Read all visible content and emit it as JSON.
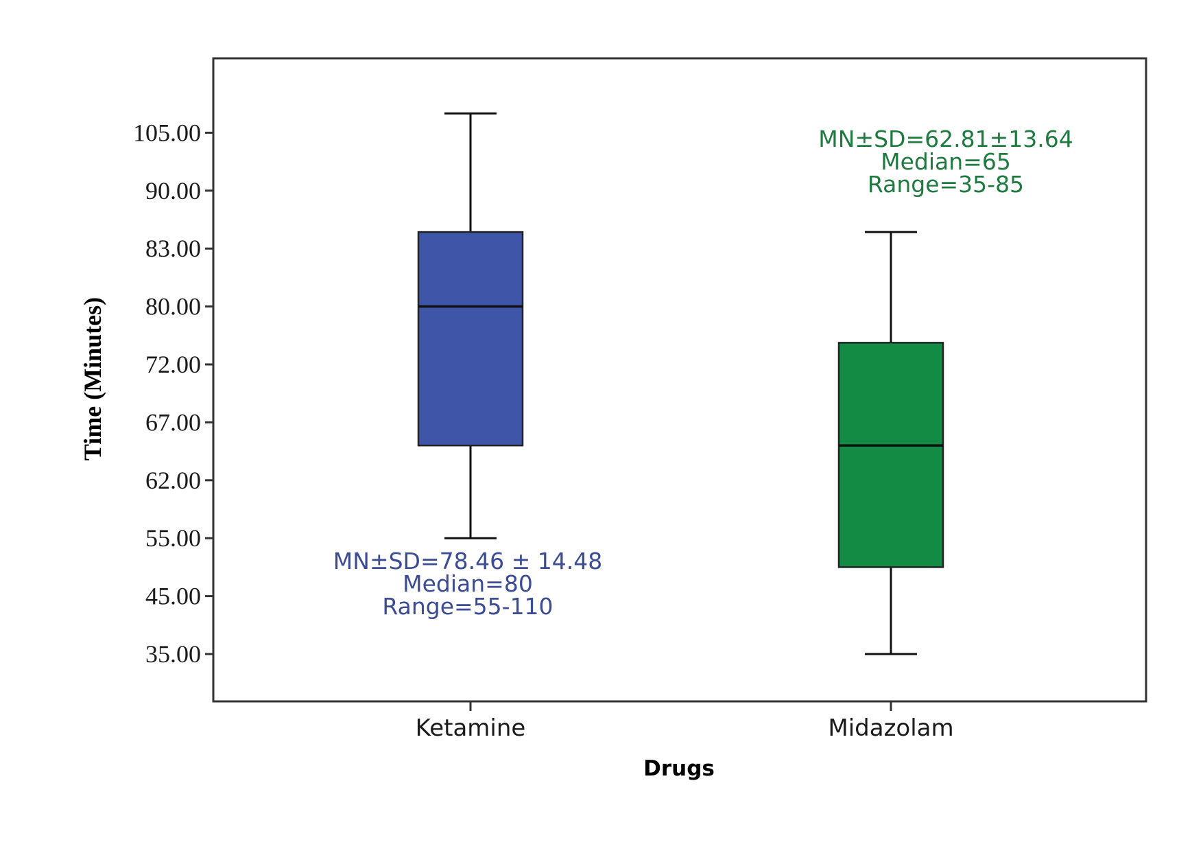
{
  "chart_data": {
    "type": "box",
    "xlabel": "Drugs",
    "ylabel": "Time (Minutes)",
    "y_ticks": [
      "35.00",
      "45.00",
      "55.00",
      "62.00",
      "67.00",
      "72.00",
      "80.00",
      "83.00",
      "90.00",
      "105.00"
    ],
    "grid": false,
    "categories": [
      "Ketamine",
      "Midazolam"
    ],
    "series": [
      {
        "category": "Ketamine",
        "color": "#3f56a8",
        "text_color": "#3b4b94",
        "whisker_high": 110,
        "q3": 85,
        "median": 80,
        "q1": 65,
        "whisker_low": 55,
        "annotation": [
          "MN±SD=78.46 ± 14.48",
          "Median=80",
          "Range=55-110"
        ],
        "annotation_position": "below"
      },
      {
        "category": "Midazolam",
        "color": "#138b45",
        "text_color": "#1f7a40",
        "whisker_high": 85,
        "q3": 75,
        "median": 65,
        "q1": 50,
        "whisker_low": 35,
        "annotation": [
          "MN±SD=62.81±13.64",
          "Median=65",
          "Range=35-85"
        ],
        "annotation_position": "above"
      }
    ]
  }
}
